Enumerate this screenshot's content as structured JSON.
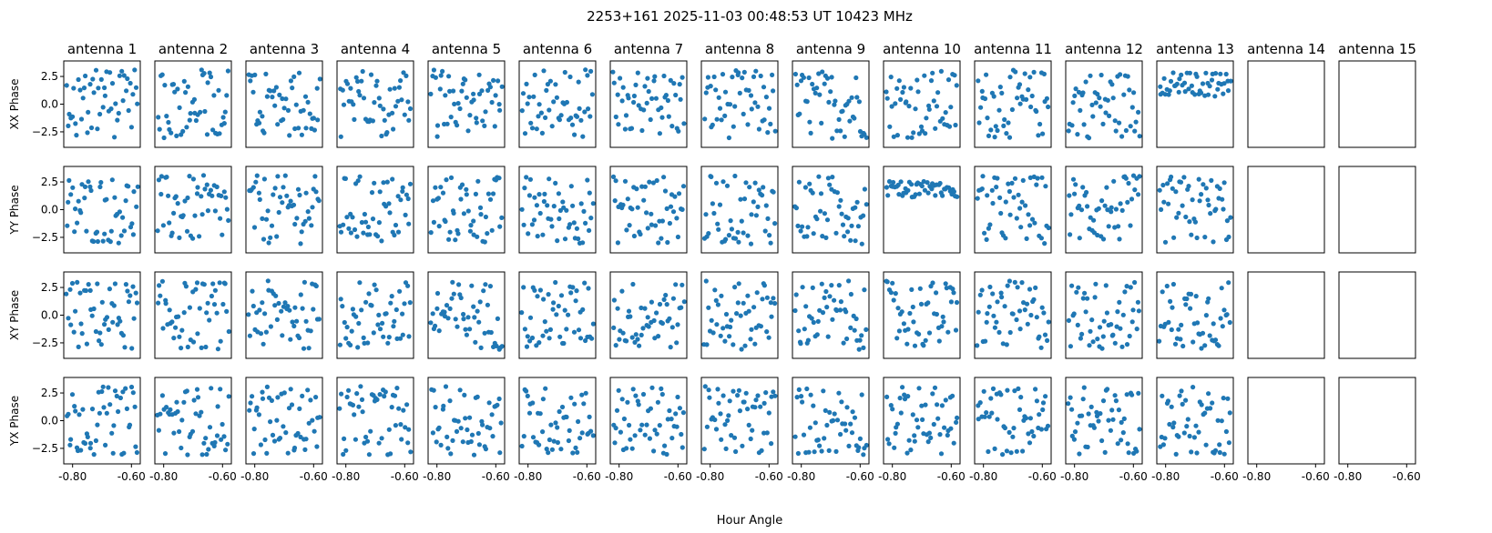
{
  "suptitle": "2253+161  2025-11-03 00:48:53 UT  10423 MHz",
  "colors": {
    "marker": "#1f77b4",
    "frame": "#000000"
  },
  "chart_data": {
    "type": "scatter",
    "layout": "grid",
    "rows": 4,
    "columns": 15,
    "antennas": [
      "antenna 1",
      "antenna 2",
      "antenna 3",
      "antenna 4",
      "antenna 5",
      "antenna 6",
      "antenna 7",
      "antenna 8",
      "antenna 9",
      "antenna 10",
      "antenna 11",
      "antenna 12",
      "antenna 13",
      "antenna 14",
      "antenna 15"
    ],
    "row_ylabels": [
      "XX Phase",
      "YY Phase",
      "XY Phase",
      "YX Phase"
    ],
    "xlabel": "Hour Angle",
    "xlim": [
      -0.83,
      -0.57
    ],
    "ylim": [
      -3.9,
      3.9
    ],
    "xticks": [
      -0.8,
      -0.6
    ],
    "xtick_labels": [
      "-0.80",
      "-0.60"
    ],
    "yticks": [
      2.5,
      0.0,
      -2.5
    ],
    "ytick_labels": [
      "2.5",
      "0.0",
      "−2.5"
    ],
    "points_per_panel": 50,
    "x_range": [
      -0.82,
      -0.58
    ],
    "panels_with_data": 13,
    "empty_antennas": [
      "antenna 14",
      "antenna 15"
    ],
    "series_note": "Each populated panel: ~50 phase samples in radians over hour angle -0.82 to -0.58; antennas 14 and 15 have no data."
  }
}
